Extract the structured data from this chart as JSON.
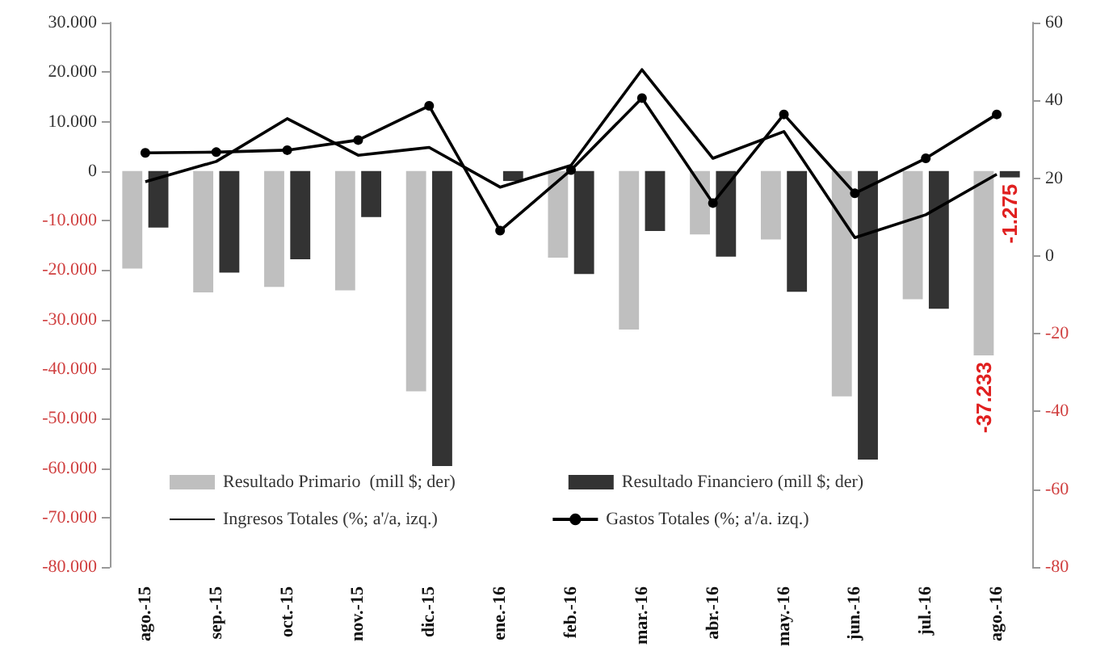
{
  "chart_data": {
    "type": "bar",
    "categories": [
      "ago.-15",
      "sep.-15",
      "oct.-15",
      "nov.-15",
      "dic.-15",
      "ene.-16",
      "feb.-16",
      "mar.-16",
      "abr.-16",
      "may.-16",
      "jun.-16",
      "jul.-16",
      "ago.-16"
    ],
    "series": [
      {
        "name": "Resultado Primario  (mill $; der)",
        "color": "#bfbfbf",
        "values": [
          -19700,
          -24500,
          -23400,
          -24100,
          -44500,
          null,
          -17500,
          -32000,
          -12800,
          -13800,
          -45500,
          -25900,
          -37233
        ],
        "value_labels": [
          null,
          null,
          null,
          null,
          null,
          null,
          null,
          null,
          null,
          null,
          null,
          null,
          "-37.233"
        ]
      },
      {
        "name": "Resultado Financiero (mill $; der)",
        "color": "#333333",
        "values": [
          -11400,
          -20500,
          -17800,
          -9300,
          -59600,
          -2000,
          -20800,
          -12100,
          -17300,
          -24400,
          -58300,
          -27800,
          -1275
        ],
        "value_labels": [
          null,
          null,
          null,
          null,
          null,
          null,
          null,
          null,
          null,
          null,
          null,
          null,
          "-1.275"
        ]
      },
      {
        "name": "Ingresos Totales (%; a'/a, izq.)",
        "type": "line",
        "axis": "y2",
        "marker": "none",
        "color": "#000000",
        "values": [
          19.1,
          24.3,
          35.3,
          25.9,
          27.9,
          17.7,
          23.3,
          47.9,
          25.1,
          32,
          4.7,
          10.6,
          21
        ]
      },
      {
        "name": "Gastos Totales (%; a'/a. izq.)",
        "type": "line",
        "axis": "y2",
        "marker": "circle",
        "color": "#000000",
        "values": [
          26.5,
          26.7,
          27.2,
          29.8,
          38.6,
          6.5,
          22.1,
          40.6,
          13.6,
          36.4,
          16.1,
          25.1,
          36.4
        ]
      }
    ],
    "ylim": [
      -80000,
      30000
    ],
    "yticks": [
      {
        "value": -80000,
        "label": "-80.000"
      },
      {
        "value": -70000,
        "label": "-70.000"
      },
      {
        "value": -60000,
        "label": "-60.000"
      },
      {
        "value": -50000,
        "label": "-50.000"
      },
      {
        "value": -40000,
        "label": "-40.000"
      },
      {
        "value": -30000,
        "label": "-30.000"
      },
      {
        "value": -20000,
        "label": "-20.000"
      },
      {
        "value": -10000,
        "label": "-10.000"
      },
      0,
      {
        "value": 10000,
        "label": "10.000"
      },
      {
        "value": 20000,
        "label": "20.000"
      },
      {
        "value": 30000,
        "label": "30.000"
      }
    ],
    "y2lim": [
      -80,
      60
    ],
    "y2ticks": [
      -80,
      -60,
      -40,
      -20,
      0,
      20,
      40,
      60
    ],
    "legend": "bottom",
    "grid": false
  }
}
